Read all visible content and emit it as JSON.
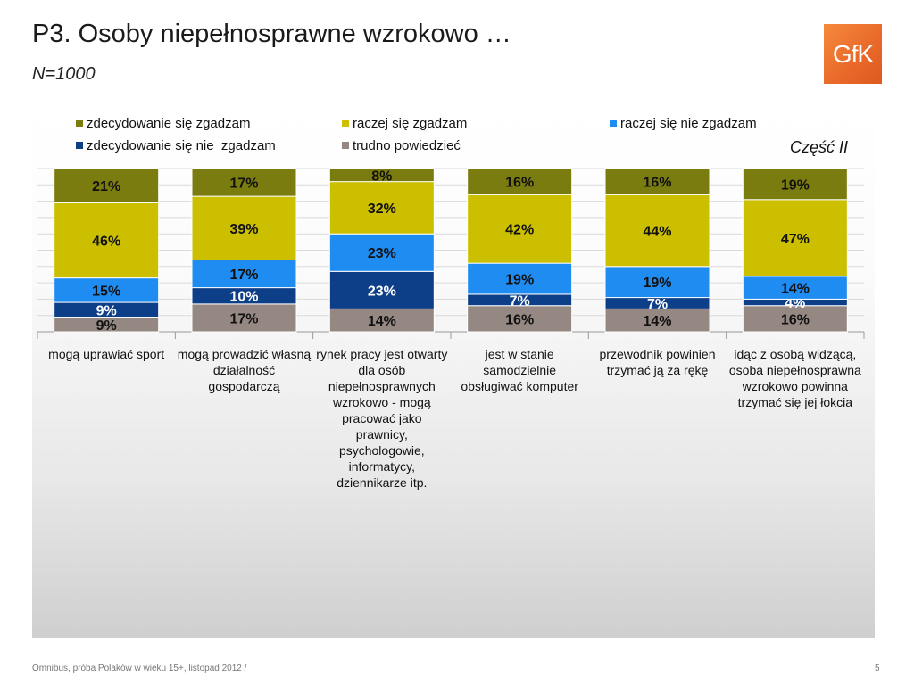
{
  "slide": {
    "title": "P3. Osoby niepełnosprawne wzrokowo …",
    "subtitle": "N=1000",
    "logo_text": "GfK",
    "section_label": "Część II",
    "footer": "Omnibus, próba Polaków w wieku 15+, listopad 2012 /",
    "page_number": "5"
  },
  "chart_data": {
    "type": "bar",
    "stacked": true,
    "stack_order_bottom_to_top": [
      "trudno powiedzieć",
      "zdecydowanie się nie  zgadzam",
      "raczej się nie zgadzam",
      "raczej się zgadzam",
      "zdecydowanie się zgadzam"
    ],
    "categories": [
      "mogą uprawiać sport",
      "mogą prowadzić własną działalność gospodarczą",
      "rynek pracy jest otwarty dla osób niepełnosprawnych wzrokowo - mogą pracować jako prawnicy, psychologowie, informatycy, dziennikarze itp.",
      "jest w stanie samodzielnie obsługiwać komputer",
      "przewodnik powinien trzymać ją za rękę",
      "idąc z osobą widzącą, osoba niepełnosprawna wzrokowo powinna trzymać się jej łokcia"
    ],
    "series": [
      {
        "name": "zdecydowanie się zgadzam",
        "color": "#7b7c0f",
        "values": [
          21,
          17,
          8,
          16,
          16,
          19
        ]
      },
      {
        "name": "raczej się zgadzam",
        "color": "#ccbf00",
        "values": [
          46,
          39,
          32,
          42,
          44,
          47
        ]
      },
      {
        "name": "raczej się nie zgadzam",
        "color": "#1e8cf0",
        "values": [
          15,
          17,
          23,
          19,
          19,
          14
        ]
      },
      {
        "name": "zdecydowanie się nie  zgadzam",
        "color": "#0d3f88",
        "values": [
          9,
          10,
          23,
          7,
          7,
          4
        ]
      },
      {
        "name": "trudno powiedzieć",
        "color": "#958883",
        "values": [
          9,
          17,
          14,
          16,
          14,
          16
        ]
      }
    ],
    "value_suffix": "%",
    "ylim": [
      0,
      100
    ],
    "legend": "top",
    "grid": true
  }
}
